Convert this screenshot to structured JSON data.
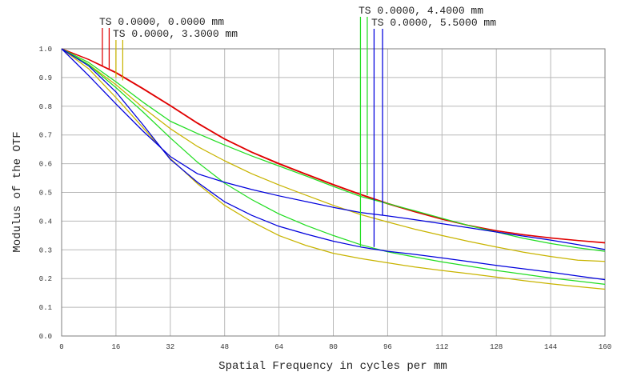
{
  "chart_data": {
    "type": "line",
    "title": "",
    "xlabel": "Spatial Frequency in cycles per mm",
    "ylabel": "Modulus of the OTF",
    "xlim": [
      0,
      160
    ],
    "ylim": [
      0,
      1
    ],
    "x_ticks": [
      0,
      16,
      32,
      48,
      64,
      80,
      96,
      112,
      128,
      144,
      160
    ],
    "y_ticks": [
      0.0,
      0.1,
      0.2,
      0.3,
      0.4,
      0.5,
      0.6,
      0.7,
      0.8,
      0.9,
      1.0
    ],
    "grid": true,
    "legend": [
      {
        "label": "TS 0.0000, 0.0000 mm",
        "colors": [
          "#e00000",
          "#e00000"
        ],
        "x_markers": [
          12.0,
          14.0
        ]
      },
      {
        "label": "TS 0.0000, 3.3000 mm",
        "colors": [
          "#c8b400",
          "#c8b400"
        ],
        "x_markers": [
          16.0,
          18.0
        ]
      },
      {
        "label": "TS 0.0000, 4.4000 mm",
        "colors": [
          "#22dd22",
          "#22dd22"
        ],
        "x_markers": [
          88.0,
          90.0
        ]
      },
      {
        "label": "TS 0.0000, 5.5000 mm",
        "colors": [
          "#0000dd",
          "#0000dd"
        ],
        "x_markers": [
          92.0,
          94.5
        ]
      }
    ],
    "series": [
      {
        "name": "0.0000 mm T",
        "color": "#e00000",
        "x": [
          0,
          8,
          16,
          24,
          32,
          40,
          48,
          56,
          64,
          72,
          80,
          88,
          96,
          104,
          112,
          120,
          128,
          136,
          144,
          152,
          160
        ],
        "values": [
          1.0,
          0.963,
          0.918,
          0.862,
          0.803,
          0.742,
          0.687,
          0.641,
          0.601,
          0.564,
          0.528,
          0.494,
          0.462,
          0.434,
          0.408,
          0.385,
          0.367,
          0.353,
          0.342,
          0.333,
          0.325
        ]
      },
      {
        "name": "0.0000 mm S",
        "color": "#e00000",
        "x": [
          0,
          8,
          16,
          24,
          32,
          40,
          48,
          56,
          64,
          72,
          80,
          88,
          96,
          104,
          112,
          120,
          128,
          136,
          144,
          152,
          160
        ],
        "values": [
          1.0,
          0.962,
          0.916,
          0.86,
          0.801,
          0.74,
          0.685,
          0.639,
          0.599,
          0.562,
          0.526,
          0.492,
          0.46,
          0.432,
          0.406,
          0.384,
          0.366,
          0.352,
          0.341,
          0.332,
          0.324
        ]
      },
      {
        "name": "3.3000 mm T",
        "color": "#c8b400",
        "x": [
          0,
          8,
          16,
          24,
          32,
          40,
          48,
          56,
          64,
          72,
          80,
          88,
          96,
          104,
          112,
          120,
          128,
          136,
          144,
          152,
          160
        ],
        "values": [
          1.0,
          0.945,
          0.875,
          0.795,
          0.722,
          0.66,
          0.61,
          0.565,
          0.526,
          0.49,
          0.455,
          0.423,
          0.397,
          0.372,
          0.35,
          0.329,
          0.31,
          0.292,
          0.277,
          0.264,
          0.26
        ]
      },
      {
        "name": "3.3000 mm S",
        "color": "#c8b400",
        "x": [
          0,
          8,
          16,
          24,
          32,
          40,
          48,
          56,
          64,
          72,
          80,
          88,
          96,
          104,
          112,
          120,
          128,
          136,
          144,
          152,
          160
        ],
        "values": [
          1.0,
          0.93,
          0.83,
          0.725,
          0.618,
          0.53,
          0.455,
          0.398,
          0.35,
          0.315,
          0.288,
          0.27,
          0.255,
          0.24,
          0.228,
          0.217,
          0.205,
          0.193,
          0.182,
          0.172,
          0.163
        ]
      },
      {
        "name": "4.4000 mm T",
        "color": "#22dd22",
        "x": [
          0,
          8,
          16,
          24,
          32,
          40,
          48,
          56,
          64,
          72,
          80,
          88,
          96,
          104,
          112,
          120,
          128,
          136,
          144,
          152,
          160
        ],
        "values": [
          1.0,
          0.952,
          0.885,
          0.814,
          0.748,
          0.705,
          0.665,
          0.627,
          0.592,
          0.557,
          0.521,
          0.486,
          0.461,
          0.436,
          0.41,
          0.384,
          0.362,
          0.34,
          0.322,
          0.307,
          0.295
        ]
      },
      {
        "name": "4.4000 mm S",
        "color": "#22dd22",
        "x": [
          0,
          8,
          16,
          24,
          32,
          40,
          48,
          56,
          64,
          72,
          80,
          88,
          96,
          104,
          112,
          120,
          128,
          136,
          144,
          152,
          160
        ],
        "values": [
          1.0,
          0.944,
          0.865,
          0.78,
          0.69,
          0.605,
          0.532,
          0.475,
          0.425,
          0.385,
          0.35,
          0.318,
          0.293,
          0.275,
          0.258,
          0.243,
          0.228,
          0.215,
          0.202,
          0.191,
          0.18
        ]
      },
      {
        "name": "5.5000 mm T",
        "color": "#0000dd",
        "x": [
          0,
          8,
          16,
          24,
          32,
          40,
          48,
          56,
          64,
          72,
          80,
          88,
          96,
          104,
          112,
          120,
          128,
          136,
          144,
          152,
          160
        ],
        "values": [
          1.0,
          0.906,
          0.808,
          0.713,
          0.625,
          0.565,
          0.535,
          0.51,
          0.488,
          0.468,
          0.448,
          0.43,
          0.418,
          0.405,
          0.391,
          0.377,
          0.362,
          0.348,
          0.334,
          0.318,
          0.301
        ]
      },
      {
        "name": "5.5000 mm S",
        "color": "#0000dd",
        "x": [
          0,
          8,
          16,
          24,
          32,
          40,
          48,
          56,
          64,
          72,
          80,
          88,
          96,
          104,
          112,
          120,
          128,
          136,
          144,
          152,
          160
        ],
        "values": [
          1.0,
          0.94,
          0.85,
          0.735,
          0.615,
          0.535,
          0.467,
          0.42,
          0.382,
          0.355,
          0.33,
          0.31,
          0.295,
          0.284,
          0.272,
          0.259,
          0.246,
          0.234,
          0.222,
          0.209,
          0.196
        ]
      }
    ]
  }
}
